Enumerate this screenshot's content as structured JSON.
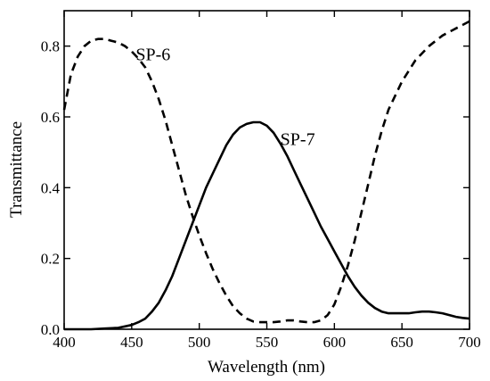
{
  "chart_data": {
    "type": "line",
    "title": "",
    "xlabel": "Wavelength (nm)",
    "ylabel": "Transmittance",
    "xlim": [
      400,
      700
    ],
    "ylim": [
      0,
      0.9
    ],
    "xticks": [
      400,
      450,
      500,
      550,
      600,
      650,
      700
    ],
    "yticks": [
      0.0,
      0.2,
      0.4,
      0.6,
      0.8
    ],
    "xtick_labels": [
      "400",
      "450",
      "500",
      "550",
      "600",
      "650",
      "700"
    ],
    "ytick_labels": [
      "0.0",
      "0.2",
      "0.4",
      "0.6",
      "0.8"
    ],
    "grid": false,
    "legend": "none",
    "series": [
      {
        "name": "SP-6",
        "style": "dashed",
        "color": "#000000",
        "x": [
          400,
          405,
          410,
          415,
          420,
          425,
          430,
          435,
          440,
          445,
          450,
          455,
          460,
          465,
          470,
          475,
          480,
          485,
          490,
          495,
          500,
          505,
          510,
          515,
          520,
          525,
          530,
          535,
          540,
          545,
          550,
          555,
          560,
          565,
          570,
          575,
          580,
          585,
          590,
          595,
          600,
          605,
          610,
          615,
          620,
          625,
          630,
          635,
          640,
          645,
          650,
          655,
          660,
          665,
          670,
          675,
          680,
          685,
          690,
          695,
          700
        ],
        "y": [
          0.62,
          0.72,
          0.77,
          0.8,
          0.815,
          0.82,
          0.82,
          0.815,
          0.81,
          0.8,
          0.785,
          0.765,
          0.74,
          0.7,
          0.65,
          0.59,
          0.52,
          0.45,
          0.38,
          0.32,
          0.265,
          0.215,
          0.17,
          0.13,
          0.095,
          0.065,
          0.045,
          0.03,
          0.022,
          0.02,
          0.02,
          0.02,
          0.022,
          0.025,
          0.025,
          0.022,
          0.02,
          0.02,
          0.025,
          0.04,
          0.07,
          0.12,
          0.18,
          0.25,
          0.33,
          0.41,
          0.49,
          0.56,
          0.62,
          0.66,
          0.7,
          0.73,
          0.76,
          0.78,
          0.8,
          0.815,
          0.83,
          0.84,
          0.85,
          0.86,
          0.87
        ]
      },
      {
        "name": "SP-7",
        "style": "solid",
        "color": "#000000",
        "x": [
          400,
          410,
          420,
          430,
          440,
          445,
          450,
          455,
          460,
          465,
          470,
          475,
          480,
          485,
          490,
          495,
          500,
          505,
          510,
          515,
          520,
          525,
          530,
          535,
          540,
          545,
          550,
          555,
          560,
          565,
          570,
          575,
          580,
          585,
          590,
          595,
          600,
          605,
          610,
          615,
          620,
          625,
          630,
          635,
          640,
          645,
          650,
          655,
          660,
          665,
          670,
          675,
          680,
          685,
          690,
          695,
          700
        ],
        "y": [
          0.0,
          0.0,
          0.0,
          0.002,
          0.004,
          0.008,
          0.012,
          0.02,
          0.03,
          0.05,
          0.075,
          0.11,
          0.15,
          0.2,
          0.25,
          0.3,
          0.35,
          0.4,
          0.44,
          0.48,
          0.52,
          0.55,
          0.57,
          0.58,
          0.585,
          0.585,
          0.575,
          0.555,
          0.525,
          0.49,
          0.45,
          0.41,
          0.37,
          0.33,
          0.29,
          0.255,
          0.22,
          0.185,
          0.15,
          0.12,
          0.095,
          0.075,
          0.06,
          0.05,
          0.045,
          0.045,
          0.045,
          0.045,
          0.048,
          0.05,
          0.05,
          0.048,
          0.045,
          0.04,
          0.035,
          0.032,
          0.03
        ]
      }
    ],
    "annotations": [
      {
        "text": "SP-6",
        "x": 453,
        "y": 0.76
      },
      {
        "text": "SP-7",
        "x": 560,
        "y": 0.52
      }
    ]
  }
}
